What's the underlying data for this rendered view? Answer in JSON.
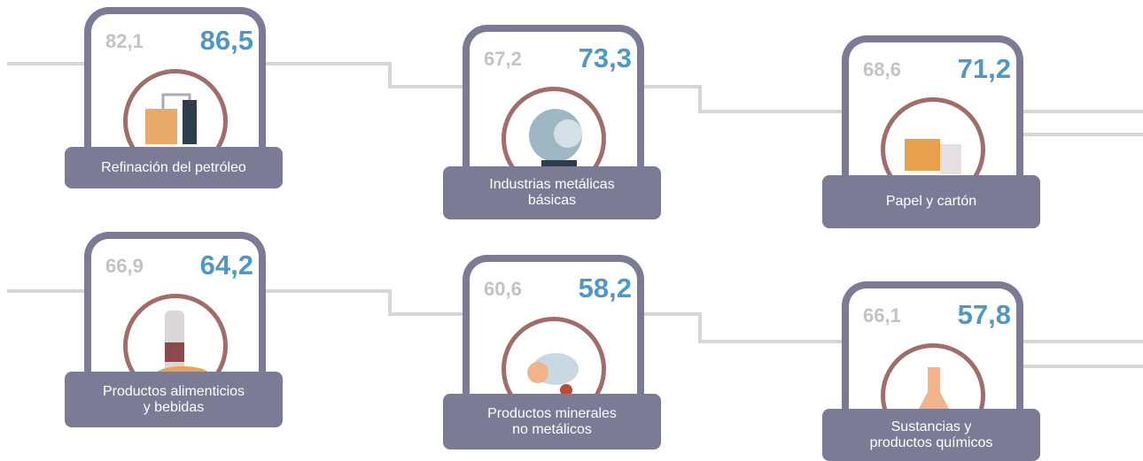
{
  "items": [
    {
      "previous": "82,1",
      "current": "86,5",
      "label": "Refinación del petróleo"
    },
    {
      "previous": "67,2",
      "current": "73,3",
      "label": "Industrias metálicas\nbásicas"
    },
    {
      "previous": "68,6",
      "current": "71,2",
      "label": "Papel y cartón"
    },
    {
      "previous": "66,9",
      "current": "64,2",
      "label": "Productos alimenticios\ny bebidas"
    },
    {
      "previous": "60,6",
      "current": "58,2",
      "label": "Productos minerales\nno metálicos"
    },
    {
      "previous": "66,1",
      "current": "57,8",
      "label": "Sustancias y\nproductos químicos"
    }
  ]
}
